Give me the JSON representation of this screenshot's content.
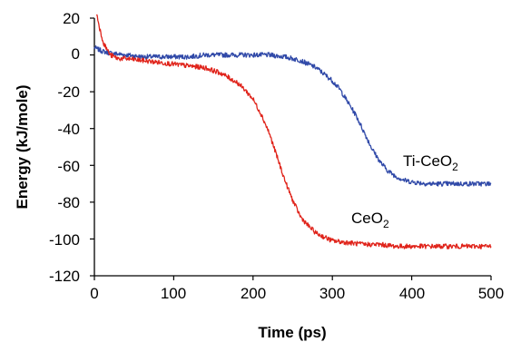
{
  "chart_data": {
    "type": "line",
    "xlabel": "Time (ps)",
    "ylabel": "Energy (kJ/mole)",
    "xlim": [
      0,
      500
    ],
    "ylim": [
      -120,
      20
    ],
    "xticks": [
      "0",
      "100",
      "200",
      "300",
      "400",
      "500"
    ],
    "yticks": [
      "20",
      "0",
      "-20",
      "-40",
      "-60",
      "-80",
      "-100",
      "-120"
    ],
    "grid": false,
    "legend": "none",
    "series": [
      {
        "name": "Ti-CeO2",
        "label_main": "Ti-CeO",
        "label_sub": "2",
        "color": "#3049a8",
        "x": [
          0,
          10,
          20,
          40,
          60,
          80,
          100,
          120,
          140,
          160,
          180,
          200,
          220,
          240,
          260,
          280,
          300,
          310,
          320,
          330,
          340,
          350,
          360,
          370,
          380,
          390,
          400,
          420,
          440,
          460,
          480,
          500
        ],
        "y": [
          4,
          2,
          1,
          0,
          -1,
          -1,
          -1,
          -1,
          0,
          0,
          0,
          0,
          0,
          -1,
          -3,
          -7,
          -14,
          -19,
          -26,
          -33,
          -42,
          -51,
          -58,
          -63,
          -66,
          -68,
          -69,
          -70,
          -70,
          -70,
          -70,
          -70
        ]
      },
      {
        "name": "CeO2",
        "label_main": "CeO",
        "label_sub": "2",
        "color": "#e0241b",
        "x": [
          3,
          5,
          8,
          12,
          16,
          20,
          25,
          30,
          40,
          60,
          80,
          100,
          120,
          140,
          160,
          180,
          190,
          200,
          210,
          220,
          230,
          240,
          250,
          260,
          270,
          280,
          290,
          300,
          320,
          340,
          360,
          380,
          400,
          420,
          440,
          460,
          480,
          500
        ],
        "y": [
          22,
          18,
          12,
          6,
          3,
          0,
          -1,
          -2,
          -2,
          -3,
          -4,
          -5,
          -6,
          -7,
          -10,
          -15,
          -19,
          -24,
          -32,
          -42,
          -55,
          -68,
          -79,
          -88,
          -93,
          -97,
          -99,
          -101,
          -102,
          -103,
          -103,
          -104,
          -104,
          -104,
          -104,
          -104,
          -104,
          -104
        ]
      }
    ]
  }
}
